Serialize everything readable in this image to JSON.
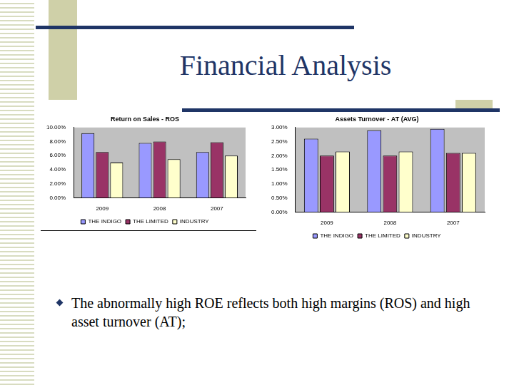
{
  "page": {
    "title": "Financial Analysis",
    "bullets": [
      "The abnormally high ROE reflects both high margins (ROS) and high asset turnover (AT);"
    ]
  },
  "chart_data": [
    {
      "type": "bar",
      "title": "Return on Sales - ROS",
      "categories": [
        "2009",
        "2008",
        "2007"
      ],
      "series": [
        {
          "name": "THE INDIGO",
          "color": "#9999ff",
          "values": [
            9.2,
            7.8,
            6.5
          ]
        },
        {
          "name": "THE LIMITED",
          "color": "#993366",
          "values": [
            6.5,
            8.0,
            7.9
          ]
        },
        {
          "name": "INDUSTRY",
          "color": "#ffffcc",
          "values": [
            5.0,
            5.5,
            6.0
          ]
        }
      ],
      "ylim": [
        0,
        10
      ],
      "yticks": [
        {
          "value": 0,
          "label": "0.00%"
        },
        {
          "value": 2,
          "label": "2.00%"
        },
        {
          "value": 4,
          "label": "4.00%"
        },
        {
          "value": 6,
          "label": "6.00%"
        },
        {
          "value": 8,
          "label": "8.00%"
        },
        {
          "value": 10,
          "label": "10.00%"
        }
      ],
      "grid": false,
      "legend": "bottom"
    },
    {
      "type": "bar",
      "title": "Assets Turnover - AT (AVG)",
      "categories": [
        "2009",
        "2008",
        "2007"
      ],
      "series": [
        {
          "name": "THE INDIGO",
          "color": "#9999ff",
          "values": [
            2.6,
            2.9,
            2.95
          ]
        },
        {
          "name": "THE LIMITED",
          "color": "#993366",
          "values": [
            2.0,
            2.0,
            2.1
          ]
        },
        {
          "name": "INDUSTRY",
          "color": "#ffffcc",
          "values": [
            2.15,
            2.15,
            2.1
          ]
        }
      ],
      "ylim": [
        0,
        3
      ],
      "yticks": [
        {
          "value": 0,
          "label": "0.00%"
        },
        {
          "value": 0.5,
          "label": "0.50%"
        },
        {
          "value": 1,
          "label": "1.00%"
        },
        {
          "value": 1.5,
          "label": "1.50%"
        },
        {
          "value": 2,
          "label": "2.00%"
        },
        {
          "value": 2.5,
          "label": "2.50%"
        },
        {
          "value": 3,
          "label": "3.00%"
        }
      ],
      "grid": false,
      "legend": "bottom"
    }
  ]
}
